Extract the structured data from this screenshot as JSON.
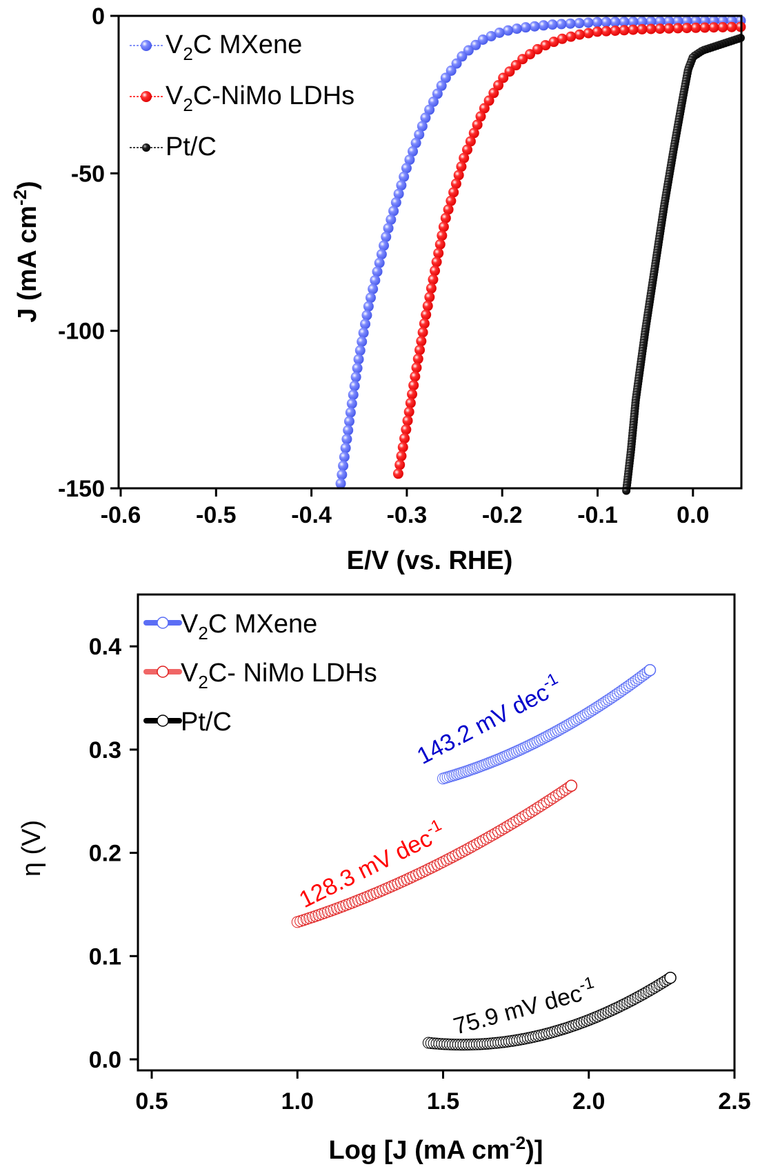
{
  "chart_data": [
    {
      "type": "scatter",
      "title": "",
      "xlabel": "E/V (vs. RHE)",
      "ylabel": "J (mA cm-2)",
      "ylabel_parts": {
        "main": "J (mA cm",
        "sup": "-2",
        "tail": ")"
      },
      "xlim": [
        -0.6,
        0.05
      ],
      "ylim": [
        -150,
        0
      ],
      "xticks": [
        "-0.6",
        "-0.5",
        "-0.4",
        "-0.3",
        "-0.2",
        "-0.1",
        "0.0"
      ],
      "xtick_values": [
        -0.6,
        -0.5,
        -0.4,
        -0.3,
        -0.2,
        -0.1,
        0.0
      ],
      "yticks": [
        "0",
        "-50",
        "-100",
        "-150"
      ],
      "ytick_values": [
        0,
        -50,
        -100,
        -150
      ],
      "grid": false,
      "legend_position": "top-left",
      "series": [
        {
          "name": "V2C MXene",
          "label_parts": {
            "a": "V",
            "sub": "2",
            "b": "C MXene"
          },
          "color": "#5b6ef5",
          "marker": "filled-sphere",
          "x": [
            0.05,
            0.0,
            -0.05,
            -0.1,
            -0.15,
            -0.18,
            -0.2,
            -0.22,
            -0.24,
            -0.26,
            -0.28,
            -0.3,
            -0.32,
            -0.34,
            -0.35,
            -0.36,
            -0.37
          ],
          "y": [
            -1.5,
            -1.6,
            -1.8,
            -2.0,
            -2.8,
            -3.8,
            -5.0,
            -7.5,
            -12,
            -20,
            -32,
            -48,
            -68,
            -92,
            -108,
            -128,
            -150
          ]
        },
        {
          "name": "V2C-NiMo LDHs",
          "label_parts": {
            "a": "V",
            "sub": "2",
            "b": "C-NiMo LDHs"
          },
          "color": "#ff0000",
          "marker": "filled-sphere",
          "x": [
            0.05,
            0.0,
            -0.05,
            -0.1,
            -0.12,
            -0.14,
            -0.16,
            -0.18,
            -0.2,
            -0.22,
            -0.24,
            -0.26,
            -0.28,
            -0.29,
            -0.3,
            -0.31
          ],
          "y": [
            -3.5,
            -3.8,
            -4.2,
            -5.0,
            -6.0,
            -7.5,
            -10,
            -14,
            -20,
            -30,
            -45,
            -65,
            -95,
            -112,
            -130,
            -147
          ]
        },
        {
          "name": "Pt/C",
          "label_parts": {
            "a": "Pt/C",
            "sub": "",
            "b": ""
          },
          "color": "#000000",
          "marker": "filled-sphere",
          "x": [
            0.05,
            0.03,
            0.01,
            0.0,
            -0.005,
            -0.01,
            -0.02,
            -0.03,
            -0.04,
            -0.05,
            -0.06,
            -0.065,
            -0.07
          ],
          "y": [
            -7,
            -9,
            -11,
            -13,
            -17,
            -25,
            -42,
            -60,
            -80,
            -100,
            -122,
            -138,
            -151
          ]
        }
      ]
    },
    {
      "type": "scatter",
      "title": "",
      "xlabel": "Log [J (mA cm-2)]",
      "xlabel_parts": {
        "main": "Log [J (mA cm",
        "sup": "-2",
        "tail": ")]"
      },
      "ylabel": "η (V)",
      "xlim": [
        0.45,
        2.5
      ],
      "ylim": [
        -0.01,
        0.45
      ],
      "xticks": [
        "0.5",
        "1.0",
        "1.5",
        "2.0",
        "2.5"
      ],
      "xtick_values": [
        0.5,
        1.0,
        1.5,
        2.0,
        2.5
      ],
      "yticks": [
        "0.0",
        "0.1",
        "0.2",
        "0.3",
        "0.4"
      ],
      "ytick_values": [
        0.0,
        0.1,
        0.2,
        0.3,
        0.4
      ],
      "grid": false,
      "legend_position": "top-left",
      "series": [
        {
          "name": "V2C MXene",
          "label_parts": {
            "a": "V",
            "sub": "2",
            "b": "C MXene"
          },
          "color": "#5b6ef5",
          "marker": "open-circle",
          "x_start": 1.5,
          "x_end": 2.21,
          "y_start": 0.272,
          "y_end": 0.377,
          "curvature": 0.012,
          "annotation": "143.2 mV dec-1",
          "annotation_parts": {
            "main": "143.2 mV dec",
            "sup": "-1"
          },
          "annotation_color": "#0000cc"
        },
        {
          "name": "V2C- NiMo LDHs",
          "label_parts": {
            "a": "V",
            "sub": "2",
            "b": "C- NiMo LDHs"
          },
          "color": "#e02020",
          "marker": "open-circle",
          "x_start": 1.0,
          "x_end": 1.94,
          "y_start": 0.133,
          "y_end": 0.265,
          "curvature": 0.012,
          "annotation": "128.3 mV dec-1",
          "annotation_parts": {
            "main": "128.3 mV dec",
            "sup": "-1"
          },
          "annotation_color": "#ff0000"
        },
        {
          "name": "Pt/C",
          "label_parts": {
            "a": "Pt/C",
            "sub": "",
            "b": ""
          },
          "color": "#000000",
          "marker": "open-circle",
          "x_start": 1.45,
          "x_end": 2.28,
          "y_start": 0.016,
          "y_end": 0.079,
          "curvature": 0.022,
          "annotation": "75.9 mV dec-1",
          "annotation_parts": {
            "main": "75.9 mV dec",
            "sup": "-1"
          },
          "annotation_color": "#000000"
        }
      ]
    }
  ]
}
